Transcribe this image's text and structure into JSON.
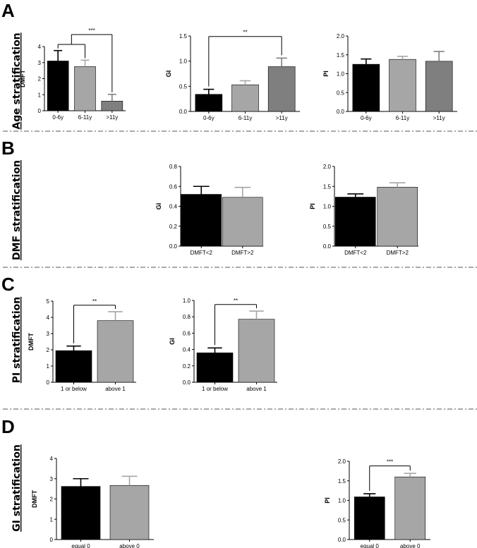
{
  "panels": [
    {
      "letter": "A",
      "row_label": "Age stratification"
    },
    {
      "letter": "B",
      "row_label": "DMF stratification"
    },
    {
      "letter": "C",
      "row_label": "PI stratification"
    },
    {
      "letter": "D",
      "row_label": "GI stratification"
    }
  ],
  "colors": {
    "black": "#000000",
    "lightgray": "#a6a6a6",
    "darkgray": "#7f7f7f",
    "axis": "#000000",
    "separator": "#555555"
  },
  "chart_data": [
    {
      "id": "A1",
      "panel": "A",
      "type": "bar",
      "ylabel": "DMFT",
      "categories": [
        "0-6y",
        "6-11y",
        ">11y"
      ],
      "values": [
        3.1,
        2.75,
        0.6
      ],
      "errors": [
        0.65,
        0.4,
        0.42
      ],
      "colors": [
        "black",
        "lightgray",
        "darkgray"
      ],
      "ylim": [
        0,
        4
      ],
      "yticks": [
        "0",
        "1",
        "2",
        "3",
        "4"
      ],
      "significance": [
        {
          "label": "***",
          "from": 0,
          "to": 2,
          "y": 4.75,
          "multi": true
        }
      ]
    },
    {
      "id": "A2",
      "panel": "A",
      "type": "bar",
      "ylabel": "GI",
      "categories": [
        "0-6y",
        "6-11y",
        ">11y"
      ],
      "values": [
        0.34,
        0.53,
        0.89
      ],
      "errors": [
        0.1,
        0.08,
        0.17
      ],
      "colors": [
        "black",
        "lightgray",
        "darkgray"
      ],
      "ylim": [
        0,
        1.5
      ],
      "yticks": [
        "0.0",
        "0.5",
        "1.0",
        "1.5"
      ],
      "significance": [
        {
          "label": "**",
          "from": 0,
          "to": 2,
          "y": 1.49
        }
      ]
    },
    {
      "id": "A3",
      "panel": "A",
      "type": "bar",
      "ylabel": "PI",
      "categories": [
        "0-6y",
        "6-11y",
        ">11y"
      ],
      "values": [
        1.25,
        1.38,
        1.33
      ],
      "errors": [
        0.14,
        0.08,
        0.26
      ],
      "colors": [
        "black",
        "lightgray",
        "darkgray"
      ],
      "ylim": [
        0,
        2
      ],
      "yticks": [
        "0.0",
        "0.5",
        "1.0",
        "1.5",
        "2.0"
      ],
      "significance": []
    },
    {
      "id": "B1",
      "panel": "B",
      "type": "bar",
      "ylabel": "GI",
      "categories": [
        "DMFT<2",
        "DMFT>2"
      ],
      "values": [
        0.52,
        0.49
      ],
      "errors": [
        0.08,
        0.1
      ],
      "colors": [
        "black",
        "lightgray"
      ],
      "ylim": [
        0,
        0.8
      ],
      "yticks": [
        "0.0",
        "0.2",
        "0.4",
        "0.6",
        "0.8"
      ],
      "significance": []
    },
    {
      "id": "B2",
      "panel": "B",
      "type": "bar",
      "ylabel": "PI",
      "categories": [
        "DMFT<2",
        "DMFT>2"
      ],
      "values": [
        1.23,
        1.48
      ],
      "errors": [
        0.08,
        0.11
      ],
      "colors": [
        "black",
        "lightgray"
      ],
      "ylim": [
        0,
        2
      ],
      "yticks": [
        "0.0",
        "0.5",
        "1.0",
        "1.5",
        "2.0"
      ],
      "significance": []
    },
    {
      "id": "C1",
      "panel": "C",
      "type": "bar",
      "ylabel": "DMFT",
      "categories": [
        "1 or below",
        "above 1"
      ],
      "values": [
        1.95,
        3.8
      ],
      "errors": [
        0.28,
        0.55
      ],
      "colors": [
        "black",
        "lightgray"
      ],
      "ylim": [
        0,
        5
      ],
      "yticks": [
        "0",
        "1",
        "2",
        "3",
        "4",
        "5"
      ],
      "significance": [
        {
          "label": "**",
          "from": 0,
          "to": 1,
          "y": 4.75
        }
      ]
    },
    {
      "id": "C2",
      "panel": "C",
      "type": "bar",
      "ylabel": "GI",
      "categories": [
        "1 or below",
        "above 1"
      ],
      "values": [
        0.36,
        0.77
      ],
      "errors": [
        0.06,
        0.1
      ],
      "colors": [
        "black",
        "lightgray"
      ],
      "ylim": [
        0,
        1
      ],
      "yticks": [
        "0.0",
        "0.2",
        "0.4",
        "0.6",
        "0.8",
        "1.0"
      ],
      "significance": [
        {
          "label": "**",
          "from": 0,
          "to": 1,
          "y": 0.95
        }
      ]
    },
    {
      "id": "D1",
      "panel": "D",
      "type": "bar",
      "ylabel": "DMFT",
      "categories": [
        "equal 0",
        "above 0"
      ],
      "values": [
        2.62,
        2.67
      ],
      "errors": [
        0.38,
        0.45
      ],
      "colors": [
        "black",
        "lightgray"
      ],
      "ylim": [
        0,
        4
      ],
      "yticks": [
        "0",
        "1",
        "2",
        "3",
        "4"
      ],
      "significance": []
    },
    {
      "id": "D2",
      "panel": "D",
      "type": "bar",
      "ylabel": "PI",
      "categories": [
        "equal 0",
        "above 0"
      ],
      "values": [
        1.09,
        1.6
      ],
      "errors": [
        0.08,
        0.09
      ],
      "colors": [
        "black",
        "lightgray"
      ],
      "ylim": [
        0,
        2
      ],
      "yticks": [
        "0.0",
        "0.5",
        "1.0",
        "1.5",
        "2.0"
      ],
      "significance": [
        {
          "label": "***",
          "from": 0,
          "to": 1,
          "y": 1.88
        }
      ]
    }
  ]
}
